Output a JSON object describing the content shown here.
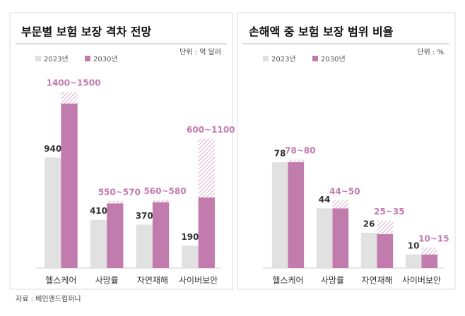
{
  "chart_data": [
    {
      "type": "bar",
      "title": "부문별 보험 보장 격차 전망",
      "unit": "단위 : 억 달러",
      "categories": [
        "헬스케어",
        "사망률",
        "자연재해",
        "사이버보안"
      ],
      "ylim": [
        0,
        1500
      ],
      "series": [
        {
          "name": "2023년",
          "color": "#e1e1e1",
          "values": [
            940,
            410,
            370,
            190
          ]
        },
        {
          "name": "2030년",
          "color": "#c27bad",
          "values": [
            1400,
            550,
            560,
            600
          ],
          "upper": [
            1500,
            570,
            580,
            1100
          ],
          "value_labels": [
            "1400~1500",
            "550~570",
            "560~580",
            "600~1100"
          ]
        }
      ]
    },
    {
      "type": "bar",
      "title": "손해액 중 보험 보장 범위 비율",
      "unit": "단위 : %",
      "categories": [
        "헬스케어",
        "사망률",
        "자연재해",
        "사이버보안"
      ],
      "ylim": [
        0,
        130
      ],
      "series": [
        {
          "name": "2023년",
          "color": "#e1e1e1",
          "values": [
            78,
            44,
            26,
            10
          ]
        },
        {
          "name": "2030년",
          "color": "#c27bad",
          "values": [
            78,
            44,
            25,
            10
          ],
          "upper": [
            80,
            50,
            35,
            15
          ],
          "value_labels": [
            "78~80",
            "44~50",
            "25~35",
            "10~15"
          ]
        }
      ]
    }
  ],
  "source": "자료 : 베인앤드컴퍼니"
}
